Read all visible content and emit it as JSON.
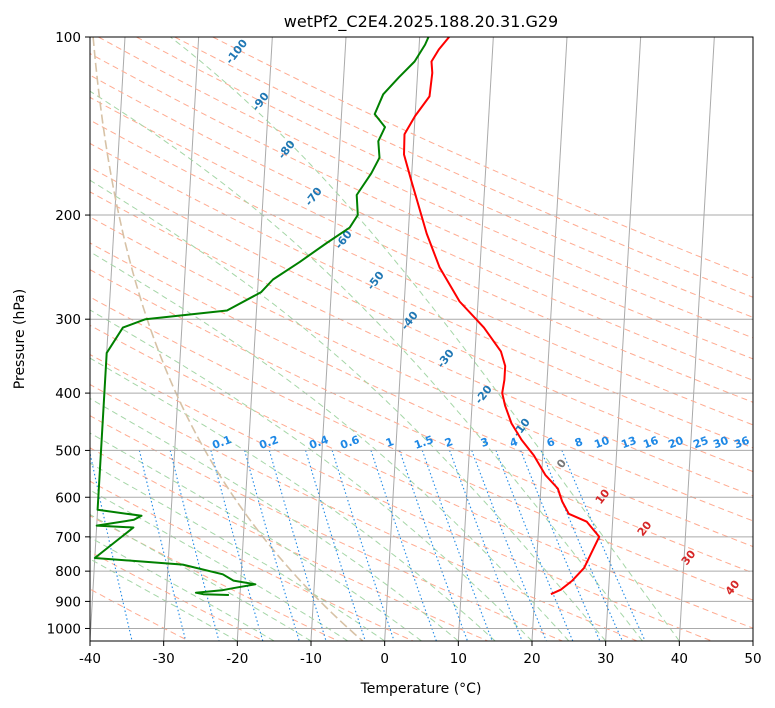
{
  "chart_data": {
    "type": "line",
    "title": "wetPf2_C2E4.2025.188.20.31.G29",
    "xlabel": "Temperature (°C)",
    "ylabel": "Pressure (hPa)",
    "xlim": [
      -40,
      50
    ],
    "ylim": [
      1050,
      100
    ],
    "y_scale": "log",
    "x_ticks": [
      -40,
      -30,
      -20,
      -10,
      0,
      10,
      20,
      30,
      40,
      50
    ],
    "y_ticks": [
      100,
      200,
      300,
      400,
      500,
      600,
      700,
      800,
      900,
      1000
    ],
    "grid": true,
    "series": [
      {
        "color": "#ff0000",
        "points": [
          [
            22.2,
            875
          ],
          [
            23.5,
            860
          ],
          [
            25.0,
            830
          ],
          [
            26.5,
            790
          ],
          [
            28.3,
            700
          ],
          [
            26.5,
            660
          ],
          [
            24.0,
            640
          ],
          [
            23.0,
            610
          ],
          [
            22.3,
            580
          ],
          [
            20.5,
            550
          ],
          [
            18.8,
            510
          ],
          [
            17.0,
            480
          ],
          [
            15.5,
            450
          ],
          [
            14.5,
            420
          ],
          [
            14.0,
            400
          ],
          [
            14.2,
            380
          ],
          [
            14.2,
            360
          ],
          [
            13.5,
            340
          ],
          [
            11.0,
            310
          ],
          [
            7.5,
            280
          ],
          [
            4.5,
            245
          ],
          [
            2.5,
            215
          ],
          [
            1.0,
            190
          ],
          [
            0.0,
            175
          ],
          [
            -1.2,
            158
          ],
          [
            -1.3,
            146
          ],
          [
            0.0,
            136
          ],
          [
            1.8,
            126
          ],
          [
            2.0,
            115
          ],
          [
            1.8,
            110
          ],
          [
            2.7,
            105
          ],
          [
            4.0,
            100
          ]
        ]
      },
      {
        "color": "#008000",
        "points": [
          [
            -21.5,
            878
          ],
          [
            -25.0,
            875
          ],
          [
            -26.0,
            870
          ],
          [
            -22.5,
            862
          ],
          [
            -21.0,
            855
          ],
          [
            -18.0,
            842
          ],
          [
            -21.0,
            830
          ],
          [
            -22.5,
            810
          ],
          [
            -28.0,
            780
          ],
          [
            -40.0,
            760
          ],
          [
            -35.0,
            675
          ],
          [
            -40.0,
            670
          ],
          [
            -35.0,
            655
          ],
          [
            -34.0,
            645
          ],
          [
            -40.0,
            630
          ],
          [
            -40.0,
            342
          ],
          [
            -38.0,
            310
          ],
          [
            -35.0,
            300
          ],
          [
            -24.0,
            290
          ],
          [
            -19.5,
            270
          ],
          [
            -18.0,
            257
          ],
          [
            -14.5,
            240
          ],
          [
            -11.0,
            223
          ],
          [
            -8.0,
            210
          ],
          [
            -7.0,
            200
          ],
          [
            -7.3,
            185
          ],
          [
            -5.5,
            170
          ],
          [
            -4.5,
            160
          ],
          [
            -4.8,
            150
          ],
          [
            -4.0,
            142
          ],
          [
            -5.5,
            135
          ],
          [
            -4.5,
            125
          ],
          [
            -2.5,
            117
          ],
          [
            -0.5,
            110
          ],
          [
            0.8,
            103
          ],
          [
            1.2,
            100
          ]
        ]
      }
    ],
    "dry_adiabat_labels": [
      "-100",
      "-90",
      "-80",
      "-70",
      "-60",
      "-50",
      "-40",
      "-30",
      "-20",
      "-10",
      "0",
      "10",
      "20",
      "30",
      "40"
    ],
    "mixing_ratio_labels": [
      "0.1",
      "0.2",
      "0.4",
      "0.6",
      "1",
      "1.5",
      "2",
      "3",
      "4",
      "6",
      "8",
      "10",
      "13",
      "16",
      "20",
      "25",
      "30",
      "36"
    ],
    "colors": {
      "isotherm": "#aaaaaa",
      "dry_adiabat": "#ffab91",
      "moist_adiabat": "#a5d6a7",
      "mixing_ratio": "#1e88e5",
      "lcl_curve": "#d7c2a6",
      "dry_label_cold": "#1f77b4",
      "dry_label_zero": "#777777",
      "dry_label_warm": "#d62728"
    }
  }
}
